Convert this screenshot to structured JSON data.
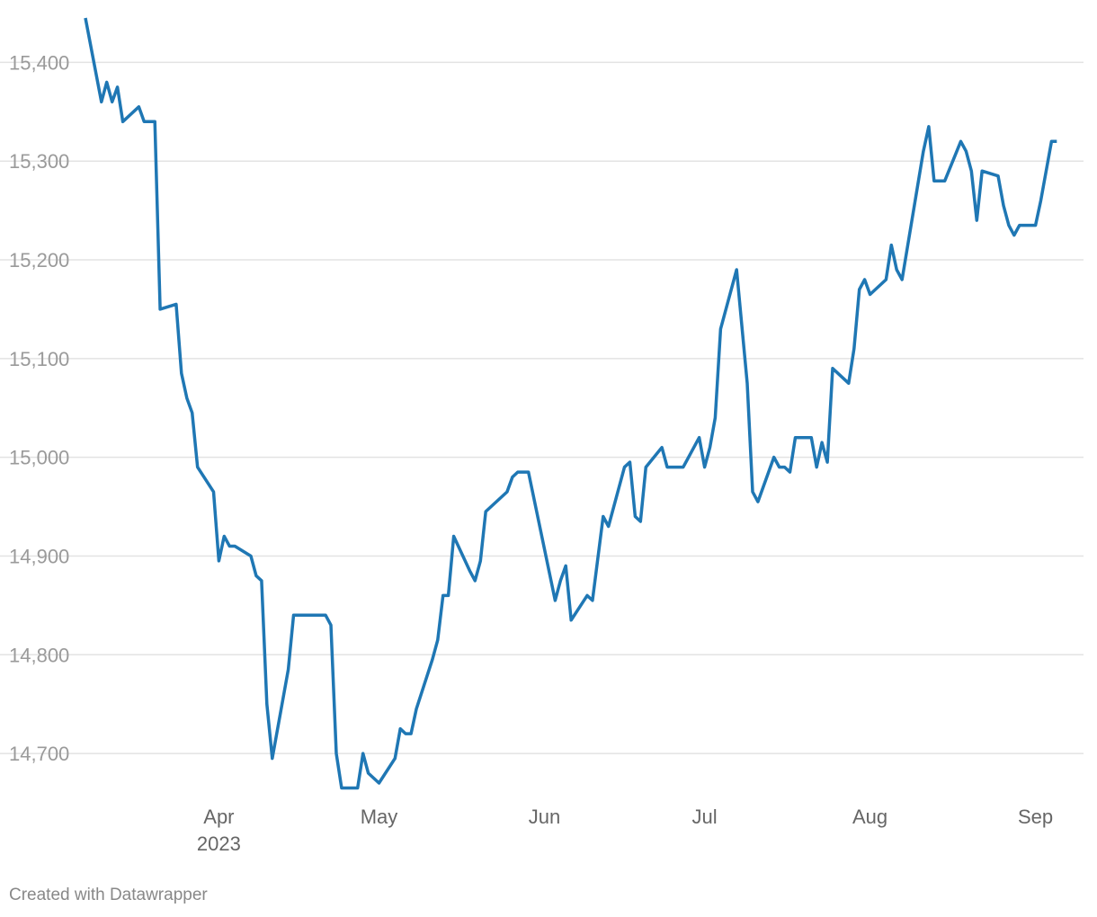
{
  "chart_data": {
    "type": "line",
    "ylim": [
      14660,
      15445
    ],
    "x_range": [
      "2023-03-07",
      "2023-09-10"
    ],
    "y_ticks": [
      14700,
      14800,
      14900,
      15000,
      15100,
      15200,
      15300,
      15400
    ],
    "y_tick_labels": [
      "14,700",
      "14,800",
      "14,900",
      "15,000",
      "15,100",
      "15,200",
      "15,300",
      "15,400"
    ],
    "x_ticks": [
      {
        "date": "2023-04-01",
        "label": "Apr",
        "sublabel": "2023"
      },
      {
        "date": "2023-05-01",
        "label": "May",
        "sublabel": ""
      },
      {
        "date": "2023-06-01",
        "label": "Jun",
        "sublabel": ""
      },
      {
        "date": "2023-07-01",
        "label": "Jul",
        "sublabel": ""
      },
      {
        "date": "2023-08-01",
        "label": "Aug",
        "sublabel": ""
      },
      {
        "date": "2023-09-01",
        "label": "Sep",
        "sublabel": ""
      }
    ],
    "grid": true,
    "series": [
      {
        "color": "#1f77b4",
        "points": [
          [
            "2023-03-07",
            15445
          ],
          [
            "2023-03-10",
            15360
          ],
          [
            "2023-03-11",
            15380
          ],
          [
            "2023-03-12",
            15360
          ],
          [
            "2023-03-13",
            15375
          ],
          [
            "2023-03-14",
            15340
          ],
          [
            "2023-03-17",
            15355
          ],
          [
            "2023-03-18",
            15340
          ],
          [
            "2023-03-20",
            15340
          ],
          [
            "2023-03-21",
            15150
          ],
          [
            "2023-03-24",
            15155
          ],
          [
            "2023-03-25",
            15085
          ],
          [
            "2023-03-26",
            15060
          ],
          [
            "2023-03-27",
            15045
          ],
          [
            "2023-03-28",
            14990
          ],
          [
            "2023-03-31",
            14965
          ],
          [
            "2023-04-01",
            14895
          ],
          [
            "2023-04-02",
            14920
          ],
          [
            "2023-04-03",
            14910
          ],
          [
            "2023-04-04",
            14910
          ],
          [
            "2023-04-07",
            14900
          ],
          [
            "2023-04-08",
            14880
          ],
          [
            "2023-04-09",
            14875
          ],
          [
            "2023-04-10",
            14750
          ],
          [
            "2023-04-11",
            14695
          ],
          [
            "2023-04-14",
            14785
          ],
          [
            "2023-04-15",
            14840
          ],
          [
            "2023-04-21",
            14840
          ],
          [
            "2023-04-22",
            14830
          ],
          [
            "2023-04-23",
            14700
          ],
          [
            "2023-04-24",
            14665
          ],
          [
            "2023-04-27",
            14665
          ],
          [
            "2023-04-28",
            14700
          ],
          [
            "2023-04-29",
            14680
          ],
          [
            "2023-05-01",
            14670
          ],
          [
            "2023-05-04",
            14695
          ],
          [
            "2023-05-05",
            14725
          ],
          [
            "2023-05-06",
            14720
          ],
          [
            "2023-05-07",
            14720
          ],
          [
            "2023-05-08",
            14745
          ],
          [
            "2023-05-11",
            14795
          ],
          [
            "2023-05-12",
            14815
          ],
          [
            "2023-05-13",
            14860
          ],
          [
            "2023-05-14",
            14860
          ],
          [
            "2023-05-15",
            14920
          ],
          [
            "2023-05-18",
            14885
          ],
          [
            "2023-05-19",
            14875
          ],
          [
            "2023-05-20",
            14895
          ],
          [
            "2023-05-21",
            14945
          ],
          [
            "2023-05-25",
            14965
          ],
          [
            "2023-05-26",
            14980
          ],
          [
            "2023-05-27",
            14985
          ],
          [
            "2023-05-29",
            14985
          ],
          [
            "2023-06-03",
            14855
          ],
          [
            "2023-06-04",
            14875
          ],
          [
            "2023-06-05",
            14890
          ],
          [
            "2023-06-06",
            14835
          ],
          [
            "2023-06-09",
            14860
          ],
          [
            "2023-06-10",
            14855
          ],
          [
            "2023-06-12",
            14940
          ],
          [
            "2023-06-13",
            14930
          ],
          [
            "2023-06-16",
            14990
          ],
          [
            "2023-06-17",
            14995
          ],
          [
            "2023-06-18",
            14940
          ],
          [
            "2023-06-19",
            14935
          ],
          [
            "2023-06-20",
            14990
          ],
          [
            "2023-06-23",
            15010
          ],
          [
            "2023-06-24",
            14990
          ],
          [
            "2023-06-27",
            14990
          ],
          [
            "2023-06-30",
            15020
          ],
          [
            "2023-07-01",
            14990
          ],
          [
            "2023-07-02",
            15010
          ],
          [
            "2023-07-03",
            15040
          ],
          [
            "2023-07-04",
            15130
          ],
          [
            "2023-07-07",
            15190
          ],
          [
            "2023-07-09",
            15075
          ],
          [
            "2023-07-10",
            14965
          ],
          [
            "2023-07-11",
            14955
          ],
          [
            "2023-07-14",
            15000
          ],
          [
            "2023-07-15",
            14990
          ],
          [
            "2023-07-16",
            14990
          ],
          [
            "2023-07-17",
            14985
          ],
          [
            "2023-07-18",
            15020
          ],
          [
            "2023-07-21",
            15020
          ],
          [
            "2023-07-22",
            14990
          ],
          [
            "2023-07-23",
            15015
          ],
          [
            "2023-07-24",
            14995
          ],
          [
            "2023-07-25",
            15090
          ],
          [
            "2023-07-28",
            15075
          ],
          [
            "2023-07-29",
            15110
          ],
          [
            "2023-07-30",
            15170
          ],
          [
            "2023-07-31",
            15180
          ],
          [
            "2023-08-01",
            15165
          ],
          [
            "2023-08-04",
            15180
          ],
          [
            "2023-08-05",
            15215
          ],
          [
            "2023-08-06",
            15190
          ],
          [
            "2023-08-07",
            15180
          ],
          [
            "2023-08-11",
            15310
          ],
          [
            "2023-08-12",
            15335
          ],
          [
            "2023-08-13",
            15280
          ],
          [
            "2023-08-15",
            15280
          ],
          [
            "2023-08-18",
            15320
          ],
          [
            "2023-08-19",
            15310
          ],
          [
            "2023-08-20",
            15290
          ],
          [
            "2023-08-21",
            15240
          ],
          [
            "2023-08-22",
            15290
          ],
          [
            "2023-08-25",
            15285
          ],
          [
            "2023-08-26",
            15255
          ],
          [
            "2023-08-27",
            15235
          ],
          [
            "2023-08-28",
            15225
          ],
          [
            "2023-08-29",
            15235
          ],
          [
            "2023-09-01",
            15235
          ],
          [
            "2023-09-02",
            15260
          ],
          [
            "2023-09-04",
            15320
          ],
          [
            "2023-09-05",
            15320
          ]
        ]
      }
    ]
  },
  "footer": {
    "credit": "Created with Datawrapper"
  }
}
